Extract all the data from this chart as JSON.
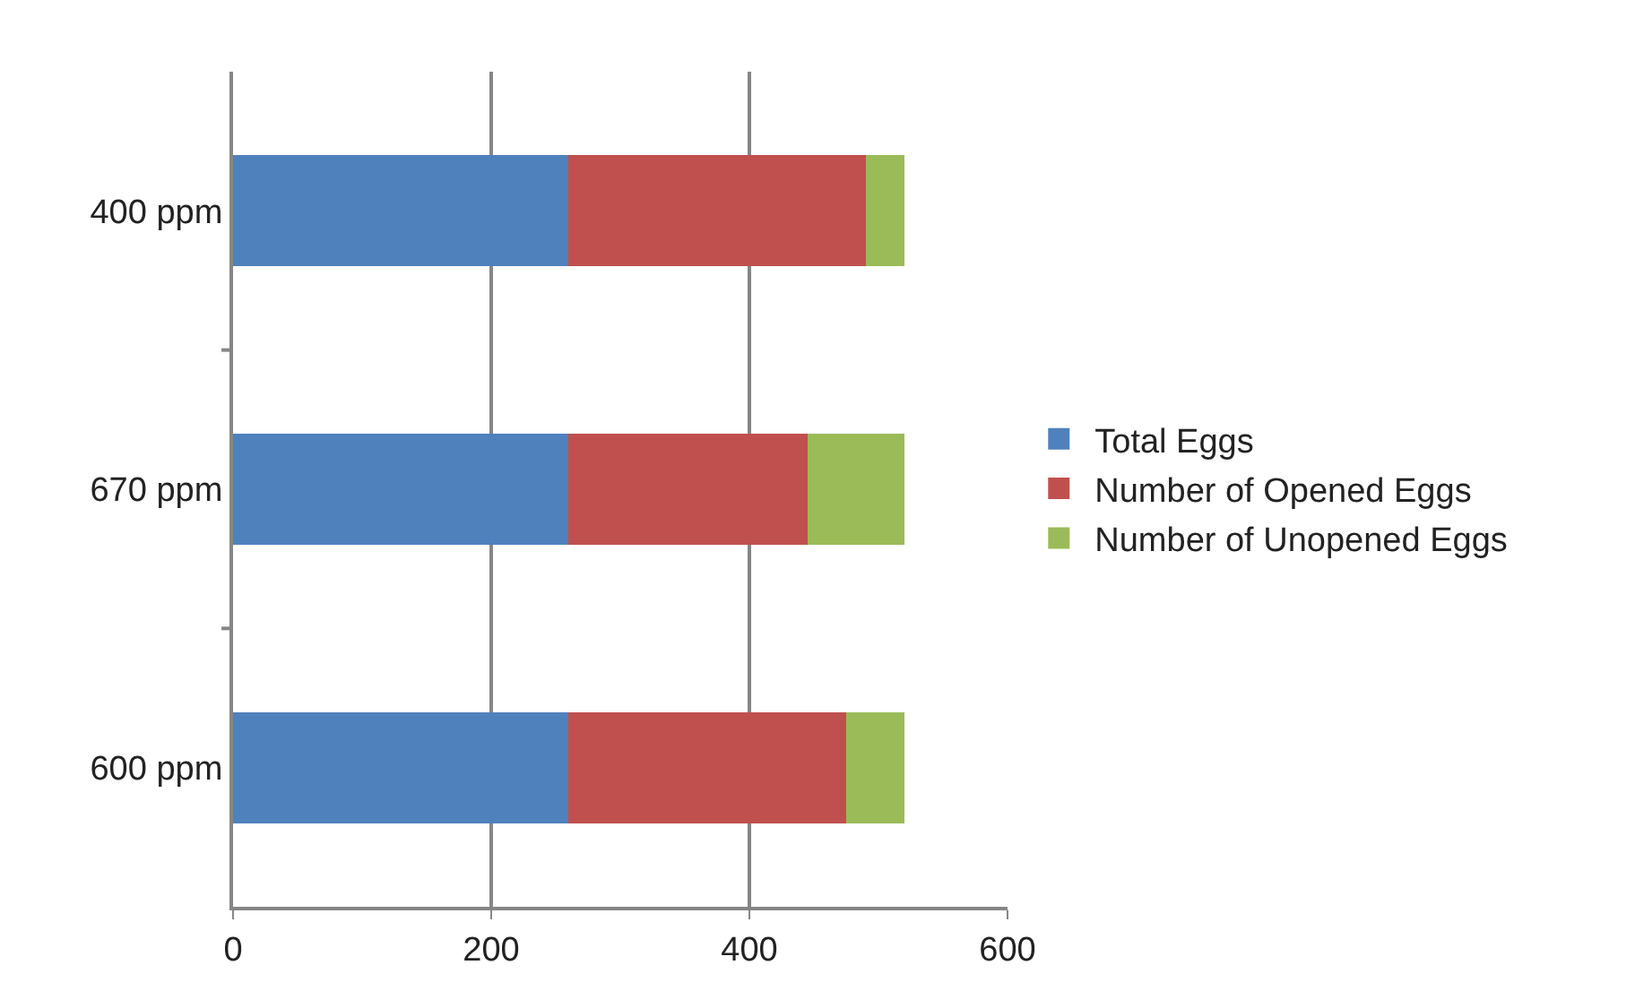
{
  "chart_data": {
    "type": "bar",
    "orientation": "horizontal",
    "stacked": true,
    "categories": [
      "400 ppm",
      "670 ppm",
      "600 ppm"
    ],
    "series": [
      {
        "name": "Total Eggs",
        "color": "#4f81bd",
        "values": [
          260,
          260,
          260
        ]
      },
      {
        "name": "Number of Opened Eggs",
        "color": "#c0504d",
        "values": [
          230,
          185,
          215
        ]
      },
      {
        "name": "Number of Unopened Eggs",
        "color": "#9bbb59",
        "values": [
          30,
          75,
          45
        ]
      }
    ],
    "xlim": [
      0,
      600
    ],
    "xticks": [
      0,
      200,
      400,
      600
    ],
    "grid": "x",
    "legend": "right"
  }
}
